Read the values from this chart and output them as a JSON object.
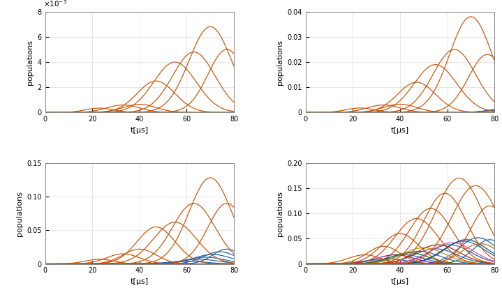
{
  "xlim": [
    0,
    80
  ],
  "xlabel": "t[μs]",
  "ylabel": "populations",
  "orange_color": "#C85000",
  "blue_color": "#2060A0",
  "panels": [
    {
      "ylim": [
        0,
        0.008
      ],
      "yticks": [
        0,
        0.002,
        0.004,
        0.006,
        0.008
      ],
      "ytick_labels": [
        "0",
        "2",
        "4",
        "6",
        "8"
      ],
      "yexp": true
    },
    {
      "ylim": [
        0,
        0.04
      ],
      "yticks": [
        0,
        0.01,
        0.02,
        0.03,
        0.04
      ],
      "ytick_labels": [
        "0",
        "0.01",
        "0.02",
        "0.03",
        "0.04"
      ],
      "yexp": false
    },
    {
      "ylim": [
        0,
        0.15
      ],
      "yticks": [
        0,
        0.05,
        0.1,
        0.15
      ],
      "ytick_labels": [
        "0",
        "0.05",
        "0.10",
        "0.15"
      ],
      "yexp": false
    },
    {
      "ylim": [
        0,
        0.2
      ],
      "yticks": [
        0,
        0.05,
        0.1,
        0.15,
        0.2
      ],
      "ytick_labels": [
        "0",
        "0.05",
        "0.10",
        "0.15",
        "0.20"
      ],
      "yexp": false
    }
  ],
  "panel_d_extra_colors": [
    "#00AACC",
    "#8800AA",
    "#007700",
    "#CC8800",
    "#AA2200",
    "#DD44AA",
    "#004488",
    "#BB6600"
  ]
}
